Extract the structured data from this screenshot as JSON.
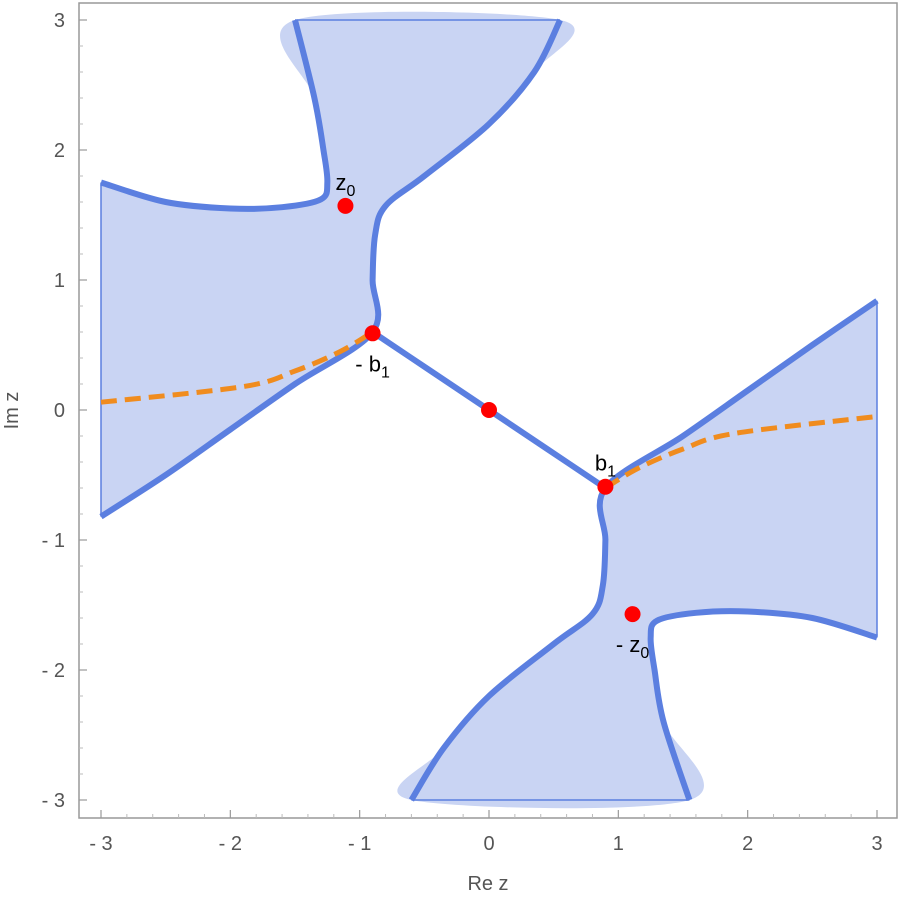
{
  "chart_data": {
    "type": "region-plot",
    "xlabel": "Re z",
    "ylabel": "Im z",
    "xlim": [
      -3,
      3
    ],
    "ylim": [
      -3,
      3
    ],
    "grid": false,
    "xticks": [
      -3,
      -2,
      -1,
      0,
      1,
      2,
      3
    ],
    "yticks": [
      -3,
      -2,
      -1,
      0,
      1,
      2,
      3
    ],
    "xtick_labels": [
      "- 3",
      "- 2",
      "- 1",
      "0",
      "1",
      "2",
      "3"
    ],
    "ytick_labels": [
      "- 3",
      "- 2",
      "- 1",
      "0",
      "1",
      "2",
      "3"
    ],
    "colors": {
      "region_fill": "#c9d4f3",
      "boundary": "#5b7fe0",
      "dashed_curve": "#f08c1e",
      "points": "#ff0000",
      "frame": "#999999"
    },
    "regions": [
      {
        "name": "upper-left",
        "boundary": [
          [
            -3,
            1.75
          ],
          [
            -2.5,
            1.6
          ],
          [
            -2.0,
            1.55
          ],
          [
            -1.6,
            1.56
          ],
          [
            -1.3,
            1.62
          ],
          [
            -1.25,
            1.75
          ],
          [
            -1.28,
            2.0
          ],
          [
            -1.35,
            2.4
          ],
          [
            -1.5,
            3.0
          ],
          [
            0.55,
            3.0
          ],
          [
            0.35,
            2.6
          ],
          [
            0.0,
            2.2
          ],
          [
            -0.5,
            1.8
          ],
          [
            -0.8,
            1.57
          ],
          [
            -0.88,
            1.35
          ],
          [
            -0.9,
            1.0
          ],
          [
            -0.9,
            0.6
          ],
          [
            -1.5,
            0.2
          ],
          [
            -2.0,
            -0.15
          ],
          [
            -2.5,
            -0.5
          ],
          [
            -3,
            -0.82
          ]
        ],
        "open_edges": [
          "left",
          "top"
        ]
      },
      {
        "name": "lower-right",
        "boundary": [
          [
            3,
            -1.75
          ],
          [
            2.5,
            -1.6
          ],
          [
            2.0,
            -1.55
          ],
          [
            1.6,
            -1.56
          ],
          [
            1.3,
            -1.62
          ],
          [
            1.25,
            -1.75
          ],
          [
            1.28,
            -2.0
          ],
          [
            1.35,
            -2.4
          ],
          [
            1.55,
            -3.0
          ],
          [
            -0.6,
            -3.0
          ],
          [
            -0.35,
            -2.6
          ],
          [
            0.0,
            -2.2
          ],
          [
            0.5,
            -1.8
          ],
          [
            0.8,
            -1.57
          ],
          [
            0.88,
            -1.35
          ],
          [
            0.9,
            -1.0
          ],
          [
            0.9,
            -0.6
          ],
          [
            1.5,
            -0.2
          ],
          [
            2.0,
            0.15
          ],
          [
            2.5,
            0.5
          ],
          [
            3,
            0.84
          ]
        ],
        "open_edges": [
          "right",
          "bottom"
        ]
      }
    ],
    "connecting_curve": [
      [
        -0.9,
        0.6
      ],
      [
        -0.45,
        0.3
      ],
      [
        0,
        0
      ],
      [
        0.45,
        -0.3
      ],
      [
        0.9,
        -0.6
      ]
    ],
    "dashed_curves": [
      {
        "points": [
          [
            -3,
            0.06
          ],
          [
            -1.9,
            0.18
          ],
          [
            -1.5,
            0.3
          ],
          [
            -1.15,
            0.45
          ],
          [
            -0.9,
            0.6
          ]
        ]
      },
      {
        "points": [
          [
            0.9,
            -0.6
          ],
          [
            1.15,
            -0.45
          ],
          [
            1.5,
            -0.3
          ],
          [
            1.9,
            -0.18
          ],
          [
            3,
            -0.05
          ]
        ]
      }
    ],
    "points": [
      {
        "x": -1.11,
        "y": 1.57,
        "label": "z",
        "label_sub": "0",
        "label_pos": "top"
      },
      {
        "x": -0.9,
        "y": 0.59,
        "label": "- b",
        "label_sub": "1",
        "label_pos": "bottom"
      },
      {
        "x": 0,
        "y": 0,
        "label": "",
        "label_sub": "",
        "label_pos": "none"
      },
      {
        "x": 0.9,
        "y": -0.59,
        "label": "b",
        "label_sub": "1",
        "label_pos": "top"
      },
      {
        "x": 1.11,
        "y": -1.57,
        "label": "- z",
        "label_sub": "0",
        "label_pos": "bottom"
      }
    ]
  }
}
